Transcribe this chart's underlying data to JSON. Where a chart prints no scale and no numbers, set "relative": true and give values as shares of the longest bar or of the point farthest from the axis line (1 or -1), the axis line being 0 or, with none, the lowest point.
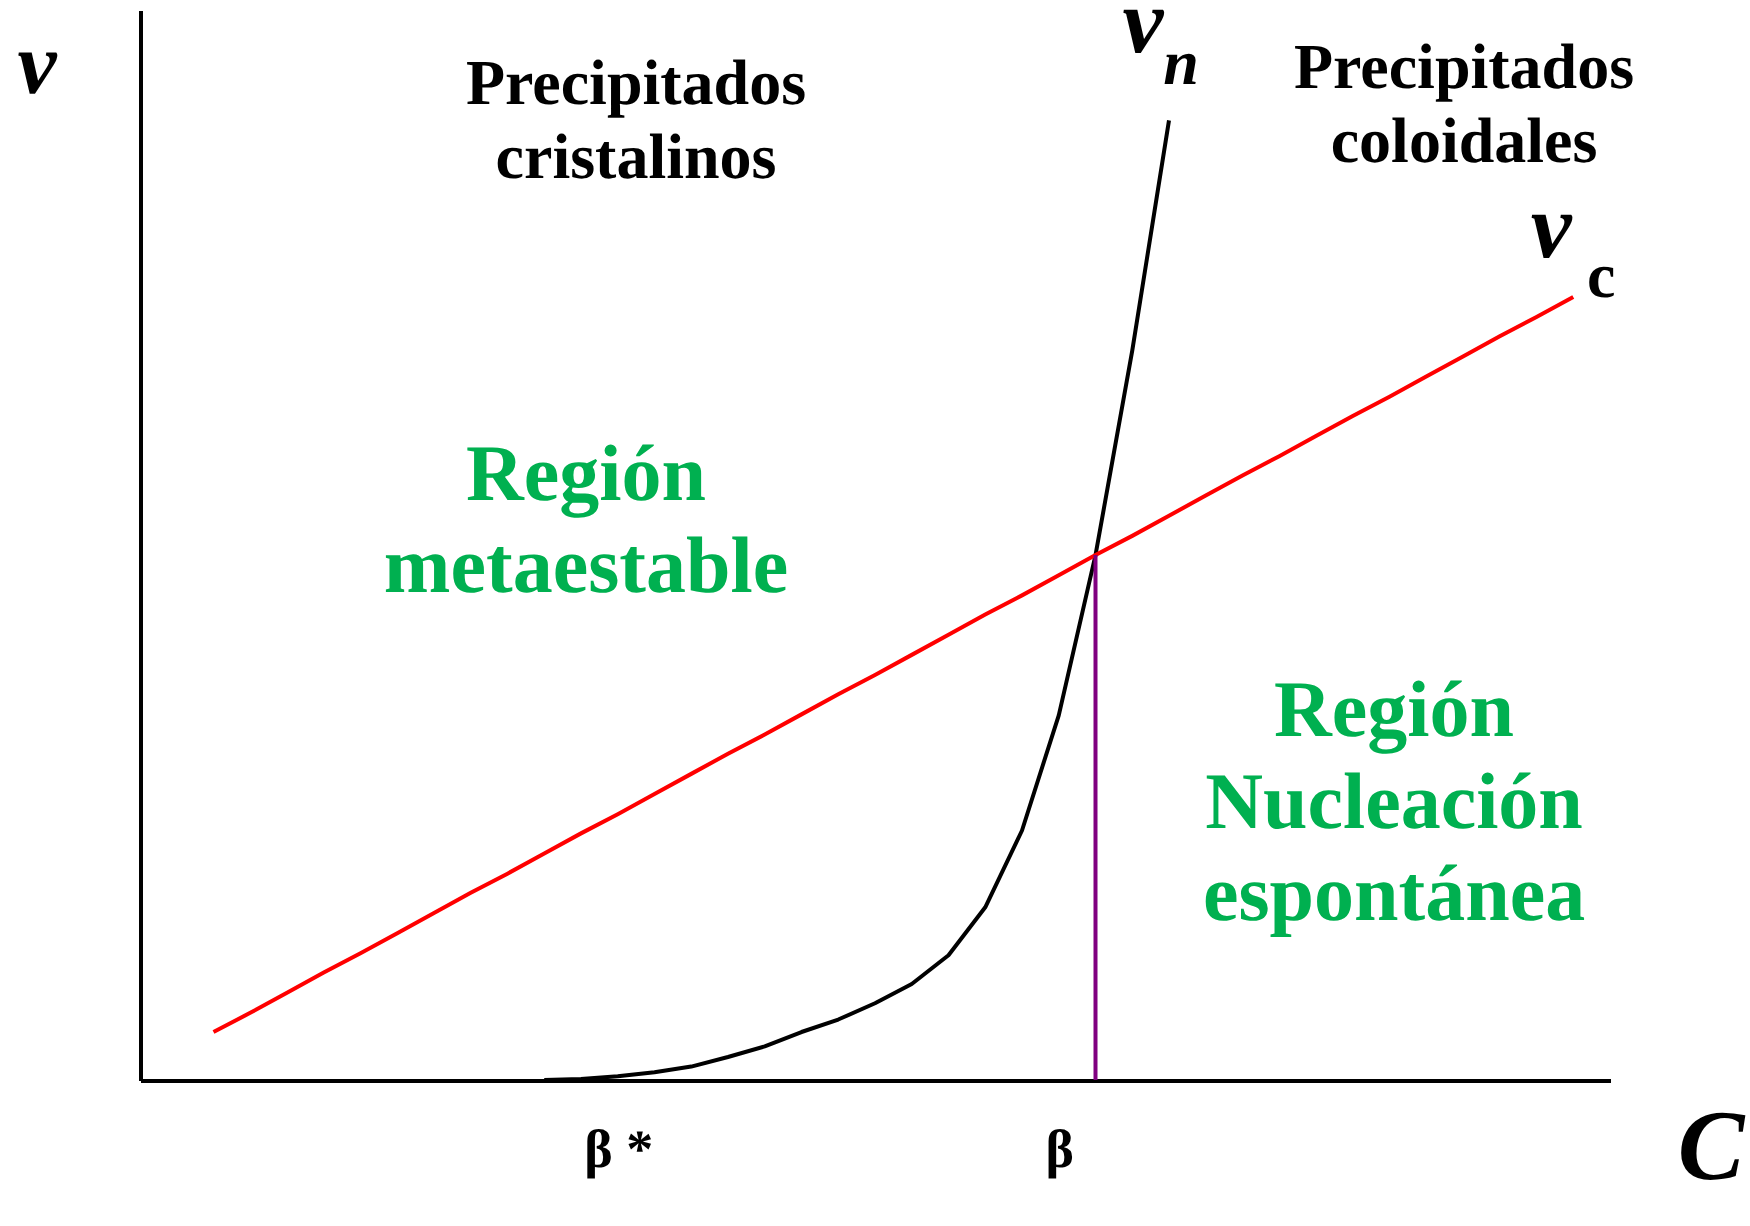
{
  "chart_data": {
    "type": "line",
    "relative": true,
    "xlabel": "C",
    "ylabel": "v",
    "categories": [
      null,
      null,
      null,
      null,
      null,
      null,
      null,
      null,
      null,
      null,
      null,
      null,
      null,
      "β *",
      null,
      null,
      null,
      null,
      null,
      null,
      null,
      null,
      null,
      null,
      null,
      "β",
      null,
      null,
      null,
      null,
      null,
      null,
      null,
      null,
      null,
      null,
      null,
      null,
      null,
      null,
      null
    ],
    "series": [
      {
        "name": "v$_{n}$",
        "color": "#000000",
        "values": [
          null,
          null,
          null,
          null,
          null,
          null,
          null,
          null,
          null,
          null,
          null,
          0,
          0.001,
          0.004,
          0.008,
          0.014,
          0.024,
          0.035,
          0.05,
          0.063,
          0.08,
          0.1,
          0.13,
          0.18,
          0.26,
          0.38,
          0.547,
          0.76,
          1.0,
          null,
          null,
          null,
          null,
          null,
          null,
          null,
          null,
          null,
          null,
          null,
          null
        ]
      },
      {
        "name": "v$_{c}$",
        "color": "#ff0000",
        "values": [
          null,
          null,
          0.05,
          0.07,
          0.091,
          0.112,
          0.132,
          0.153,
          0.174,
          0.195,
          0.215,
          0.236,
          0.257,
          0.277,
          0.298,
          0.319,
          0.34,
          0.36,
          0.381,
          0.402,
          0.422,
          0.443,
          0.464,
          0.485,
          0.505,
          0.526,
          0.547,
          0.567,
          0.588,
          0.609,
          0.63,
          0.65,
          0.671,
          0.692,
          0.712,
          0.733,
          0.754,
          0.775,
          0.795,
          0.816,
          null
        ]
      },
      {
        "type": "bar",
        "color": "#800080",
        "values": [
          null,
          null,
          null,
          null,
          null,
          null,
          null,
          null,
          null,
          null,
          null,
          null,
          null,
          null,
          null,
          null,
          null,
          null,
          null,
          null,
          null,
          null,
          null,
          null,
          null,
          null,
          0.547,
          null,
          null,
          null,
          null,
          null,
          null,
          null,
          null,
          null,
          null,
          null,
          null,
          null,
          null
        ]
      }
    ],
    "annotations": [
      "Precipitados\ncristalinos",
      "Precipitados\ncoloidales",
      "Región\nmetaestable",
      "Región\nNucleación\nespontánea"
    ],
    "grid": false,
    "marker": "none",
    "line_style": "solid"
  }
}
